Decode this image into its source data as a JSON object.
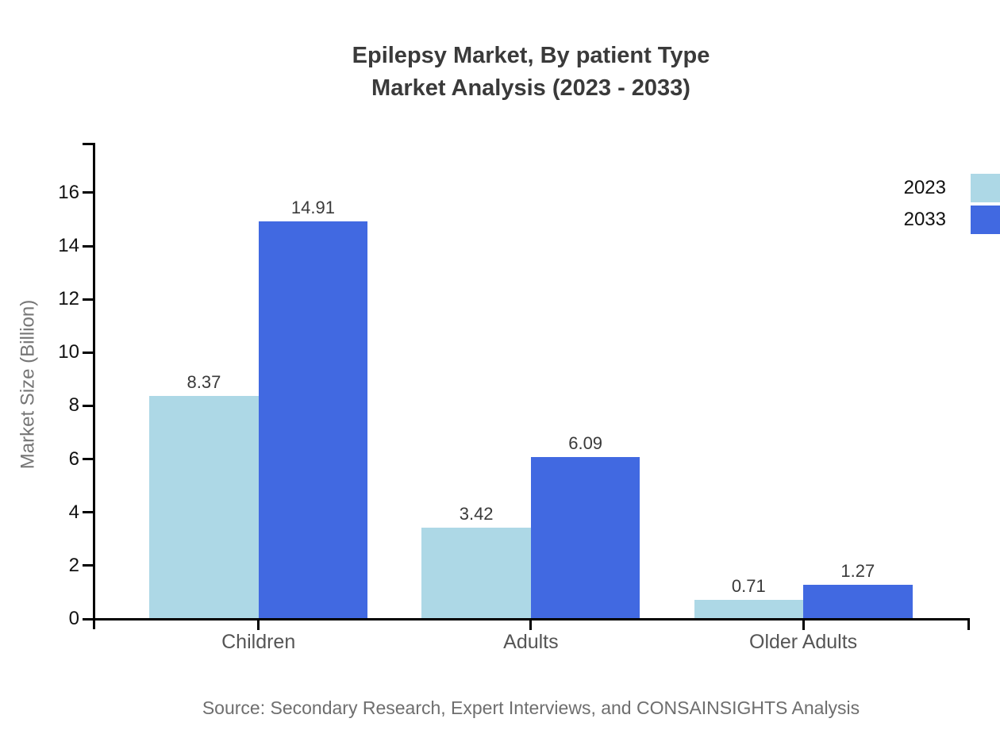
{
  "chart": {
    "title_line1": "Epilepsy Market, By patient Type",
    "title_line2": "Market Analysis (2023 - 2033)"
  },
  "source": {
    "text": "Source: Secondary Research, Expert Interviews, and CONSAINSIGHTS Analysis"
  },
  "chart_data": {
    "type": "bar",
    "title": "Epilepsy Market, By patient Type",
    "subtitle": "Market Analysis (2023 - 2033)",
    "categories": [
      "Children",
      "Adults",
      "Older Adults"
    ],
    "series": [
      {
        "name": "2023",
        "color": "#ADD8E6",
        "values": [
          8.37,
          3.42,
          0.71
        ]
      },
      {
        "name": "2033",
        "color": "#4169E1",
        "values": [
          14.91,
          6.09,
          1.27
        ]
      }
    ],
    "xlabel": "",
    "ylabel": "Market Size (Billion)",
    "ylim": [
      0,
      17.9
    ],
    "yticks": [
      0,
      2,
      4,
      6,
      8,
      10,
      12,
      14,
      16
    ],
    "grid": false,
    "bar_value_labels": true,
    "value_label_decimals": 2,
    "legend_position": "upper-right",
    "axis_color": "#000000",
    "tick_label_color": "#111111",
    "category_label_color": "#555555",
    "value_label_color": "#3a3a3a",
    "title_color": "#3a3a3a",
    "ylabel_color": "#757575",
    "source_color": "#6e6e6e"
  }
}
